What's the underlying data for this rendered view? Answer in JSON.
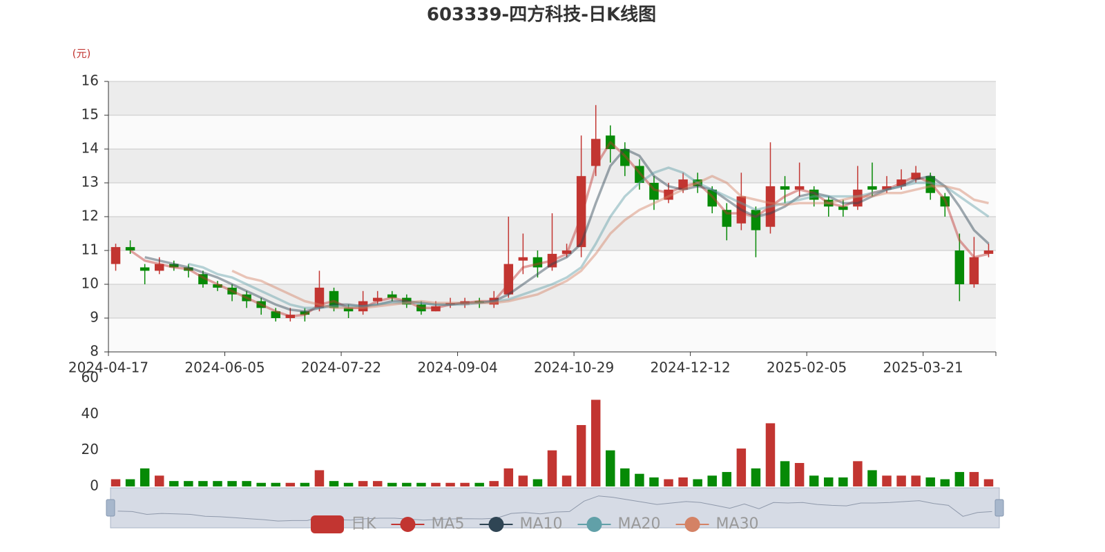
{
  "chart_data": {
    "type": "candlestick",
    "title": "603339-四方科技-日K线图",
    "unit": "(元)",
    "categories": [
      "2024-04-17",
      null,
      null,
      null,
      null,
      null,
      null,
      null,
      "2024-06-05",
      null,
      null,
      null,
      null,
      null,
      null,
      null,
      "2024-07-22",
      null,
      null,
      null,
      null,
      null,
      null,
      null,
      "2024-09-04",
      null,
      null,
      null,
      null,
      null,
      null,
      null,
      "2024-10-29",
      null,
      null,
      null,
      null,
      null,
      null,
      null,
      "2024-12-12",
      null,
      null,
      null,
      null,
      null,
      null,
      null,
      "2025-02-05",
      null,
      null,
      null,
      null,
      null,
      null,
      null,
      "2025-03-21",
      null,
      null,
      null,
      null
    ],
    "ylim": [
      8,
      16
    ],
    "yticks": [
      8,
      9,
      10,
      11,
      12,
      13,
      14,
      15,
      16
    ],
    "legend": "bottom",
    "series": [
      {
        "name": "日K",
        "type": "candlestick",
        "up_color": "#c23531",
        "down_color": "#068a06",
        "values": [
          [
            10.6,
            11.1,
            10.4,
            11.2
          ],
          [
            11.1,
            11.0,
            10.9,
            11.3
          ],
          [
            10.5,
            10.4,
            10.0,
            10.6
          ],
          [
            10.4,
            10.6,
            10.3,
            10.8
          ],
          [
            10.6,
            10.5,
            10.4,
            10.7
          ],
          [
            10.5,
            10.4,
            10.2,
            10.6
          ],
          [
            10.3,
            10.0,
            9.9,
            10.4
          ],
          [
            10.0,
            9.9,
            9.8,
            10.1
          ],
          [
            9.9,
            9.7,
            9.5,
            10.0
          ],
          [
            9.7,
            9.5,
            9.3,
            9.8
          ],
          [
            9.5,
            9.3,
            9.1,
            9.6
          ],
          [
            9.2,
            9.0,
            8.9,
            9.3
          ],
          [
            9.0,
            9.1,
            8.9,
            9.3
          ],
          [
            9.2,
            9.1,
            8.9,
            9.3
          ],
          [
            9.3,
            9.9,
            9.2,
            10.4
          ],
          [
            9.8,
            9.3,
            9.2,
            9.9
          ],
          [
            9.3,
            9.2,
            9.0,
            9.4
          ],
          [
            9.2,
            9.5,
            9.1,
            9.8
          ],
          [
            9.5,
            9.6,
            9.4,
            9.8
          ],
          [
            9.7,
            9.6,
            9.5,
            9.8
          ],
          [
            9.6,
            9.4,
            9.3,
            9.7
          ],
          [
            9.4,
            9.2,
            9.1,
            9.5
          ],
          [
            9.2,
            9.35,
            9.2,
            9.5
          ],
          [
            9.4,
            9.45,
            9.3,
            9.6
          ],
          [
            9.4,
            9.5,
            9.3,
            9.6
          ],
          [
            9.5,
            9.45,
            9.3,
            9.6
          ],
          [
            9.4,
            9.6,
            9.3,
            9.8
          ],
          [
            9.7,
            10.6,
            9.6,
            12.0
          ],
          [
            10.7,
            10.8,
            10.3,
            11.5
          ],
          [
            10.8,
            10.5,
            10.2,
            11.0
          ],
          [
            10.5,
            10.9,
            10.4,
            12.1
          ],
          [
            10.9,
            11.0,
            10.8,
            11.2
          ],
          [
            11.1,
            13.2,
            10.8,
            14.4
          ],
          [
            13.5,
            14.3,
            13.2,
            15.3
          ],
          [
            14.4,
            14.0,
            13.6,
            14.7
          ],
          [
            14.0,
            13.5,
            13.2,
            14.2
          ],
          [
            13.5,
            13.0,
            12.8,
            13.7
          ],
          [
            13.0,
            12.5,
            12.2,
            13.2
          ],
          [
            12.5,
            12.8,
            12.4,
            13.0
          ],
          [
            12.8,
            13.1,
            12.7,
            13.3
          ],
          [
            13.1,
            12.9,
            12.7,
            13.3
          ],
          [
            12.8,
            12.3,
            12.1,
            12.9
          ],
          [
            12.2,
            11.7,
            11.3,
            12.4
          ],
          [
            11.8,
            12.6,
            11.6,
            13.3
          ],
          [
            12.2,
            11.6,
            10.8,
            12.3
          ],
          [
            11.7,
            12.9,
            11.5,
            14.2
          ],
          [
            12.9,
            12.8,
            12.4,
            13.2
          ],
          [
            12.8,
            12.9,
            12.6,
            13.6
          ],
          [
            12.8,
            12.5,
            12.3,
            12.9
          ],
          [
            12.5,
            12.3,
            12.0,
            12.6
          ],
          [
            12.3,
            12.2,
            12.0,
            12.5
          ],
          [
            12.3,
            12.8,
            12.2,
            13.5
          ],
          [
            12.9,
            12.8,
            12.6,
            13.6
          ],
          [
            12.8,
            12.9,
            12.7,
            13.2
          ],
          [
            12.9,
            13.1,
            12.8,
            13.4
          ],
          [
            13.1,
            13.3,
            13.0,
            13.5
          ],
          [
            13.2,
            12.7,
            12.5,
            13.3
          ],
          [
            12.6,
            12.3,
            12.0,
            12.7
          ],
          [
            11.0,
            10.0,
            9.5,
            11.5
          ],
          [
            10.0,
            10.8,
            9.9,
            11.4
          ],
          [
            10.9,
            11.0,
            10.8,
            11.2
          ]
        ]
      },
      {
        "name": "MA5",
        "type": "line",
        "color": "#c23531",
        "values": [
          null,
          11.0,
          10.7,
          10.6,
          10.5,
          10.45,
          10.2,
          10.0,
          9.8,
          9.6,
          9.4,
          9.2,
          9.05,
          9.1,
          9.4,
          9.5,
          9.3,
          9.3,
          9.5,
          9.6,
          9.5,
          9.3,
          9.3,
          9.4,
          9.45,
          9.5,
          9.5,
          10.0,
          10.5,
          10.6,
          10.7,
          10.9,
          12.0,
          13.5,
          14.2,
          13.8,
          13.3,
          12.8,
          12.7,
          12.9,
          13.0,
          12.6,
          12.1,
          12.1,
          12.0,
          12.3,
          12.6,
          12.8,
          12.7,
          12.4,
          12.3,
          12.5,
          12.7,
          12.8,
          13.0,
          13.2,
          13.0,
          12.5,
          11.3,
          10.8,
          10.9
        ]
      },
      {
        "name": "MA10",
        "type": "line",
        "color": "#2f4554",
        "values": [
          null,
          null,
          10.8,
          10.7,
          10.6,
          10.5,
          10.35,
          10.2,
          10.0,
          9.8,
          9.6,
          9.4,
          9.25,
          9.2,
          9.3,
          9.4,
          9.4,
          9.35,
          9.4,
          9.5,
          9.5,
          9.45,
          9.4,
          9.4,
          9.45,
          9.45,
          9.5,
          9.7,
          10.0,
          10.3,
          10.6,
          10.8,
          11.2,
          12.4,
          13.5,
          14.0,
          13.8,
          13.2,
          12.9,
          12.8,
          12.9,
          12.8,
          12.5,
          12.2,
          12.0,
          12.1,
          12.3,
          12.6,
          12.7,
          12.6,
          12.4,
          12.4,
          12.6,
          12.8,
          12.9,
          13.1,
          13.2,
          12.9,
          12.3,
          11.6,
          11.2
        ]
      },
      {
        "name": "MA20",
        "type": "line",
        "color": "#61a0a8",
        "values": [
          null,
          null,
          null,
          null,
          null,
          10.6,
          10.5,
          10.3,
          10.2,
          10.0,
          9.8,
          9.6,
          9.4,
          9.3,
          9.3,
          9.35,
          9.35,
          9.35,
          9.4,
          9.45,
          9.45,
          9.45,
          9.4,
          9.4,
          9.4,
          9.45,
          9.5,
          9.55,
          9.7,
          9.85,
          10.0,
          10.2,
          10.5,
          11.2,
          12.0,
          12.6,
          13.0,
          13.3,
          13.45,
          13.3,
          13.0,
          12.8,
          12.6,
          12.4,
          12.2,
          12.3,
          12.4,
          12.5,
          12.6,
          12.6,
          12.6,
          12.6,
          12.7,
          12.8,
          12.9,
          13.0,
          13.0,
          12.9,
          12.6,
          12.3,
          12.0
        ]
      },
      {
        "name": "MA30",
        "type": "line",
        "color": "#d48265",
        "values": [
          null,
          null,
          null,
          null,
          null,
          null,
          null,
          null,
          10.4,
          10.2,
          10.1,
          9.9,
          9.7,
          9.5,
          9.4,
          9.3,
          9.3,
          9.3,
          9.35,
          9.4,
          9.45,
          9.5,
          9.45,
          9.45,
          9.45,
          9.45,
          9.45,
          9.5,
          9.6,
          9.7,
          9.9,
          10.1,
          10.4,
          10.9,
          11.5,
          11.9,
          12.2,
          12.4,
          12.6,
          12.8,
          13.0,
          13.2,
          13.0,
          12.6,
          12.5,
          12.4,
          12.35,
          12.4,
          12.4,
          12.4,
          12.5,
          12.6,
          12.6,
          12.7,
          12.7,
          12.8,
          12.9,
          12.9,
          12.8,
          12.5,
          12.4
        ]
      }
    ],
    "volume": {
      "ylim": [
        0,
        60
      ],
      "yticks": [
        0,
        20,
        40,
        60
      ],
      "values": [
        4,
        4,
        10,
        6,
        3,
        3,
        3,
        3,
        3,
        3,
        2,
        2,
        2,
        2,
        9,
        3,
        2,
        3,
        3,
        2,
        2,
        2,
        2,
        2,
        2,
        2,
        3,
        10,
        6,
        4,
        20,
        6,
        34,
        48,
        20,
        10,
        7,
        5,
        4,
        5,
        4,
        6,
        8,
        21,
        10,
        35,
        14,
        13,
        6,
        5,
        5,
        14,
        9,
        6,
        6,
        6,
        5,
        4,
        8,
        8,
        4
      ]
    }
  }
}
